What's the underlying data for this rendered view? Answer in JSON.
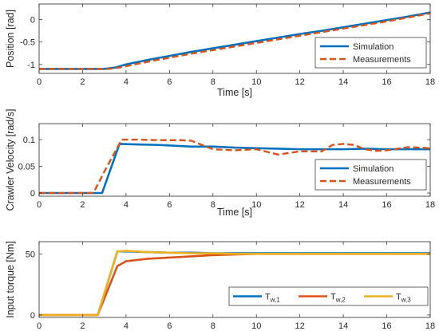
{
  "chart_data": [
    {
      "type": "line",
      "xlabel": "Time [s]",
      "ylabel": "Position [rad]",
      "xlim": [
        0,
        18
      ],
      "ylim": [
        -1.2,
        0.35
      ],
      "xticks": [
        0,
        2,
        4,
        6,
        8,
        10,
        12,
        14,
        16,
        18
      ],
      "yticks": [
        -1,
        -0.5,
        0
      ],
      "ytick_labels": [
        "-1",
        "-0.5",
        "0"
      ],
      "grid": false,
      "legend_position": "right",
      "series": [
        {
          "name": "Simulation",
          "color": "#0072BD",
          "style": "solid",
          "x": [
            0,
            3,
            3.5,
            4,
            5,
            6,
            7,
            8,
            9,
            10,
            11,
            12,
            13,
            14,
            15,
            16,
            17,
            18
          ],
          "y": [
            -1.1,
            -1.1,
            -1.07,
            -1.0,
            -0.9,
            -0.81,
            -0.72,
            -0.64,
            -0.56,
            -0.48,
            -0.4,
            -0.32,
            -0.25,
            -0.17,
            -0.09,
            -0.01,
            0.07,
            0.16
          ]
        },
        {
          "name": "Measurements",
          "color": "#D95319",
          "style": "dashed",
          "x": [
            0,
            3.2,
            3.7,
            4.2,
            5,
            6,
            7,
            8,
            9,
            10,
            11,
            12,
            13,
            14,
            15,
            16,
            17,
            18
          ],
          "y": [
            -1.1,
            -1.1,
            -1.07,
            -1.02,
            -0.94,
            -0.85,
            -0.76,
            -0.68,
            -0.6,
            -0.52,
            -0.44,
            -0.36,
            -0.28,
            -0.2,
            -0.12,
            -0.04,
            0.05,
            0.14
          ]
        }
      ]
    },
    {
      "type": "line",
      "xlabel": "Time [s]",
      "ylabel": "Crawler Velocity [rad/s]",
      "xlim": [
        0,
        18
      ],
      "ylim": [
        -0.006,
        0.13
      ],
      "xticks": [
        0,
        2,
        4,
        6,
        8,
        10,
        12,
        14,
        16,
        18
      ],
      "yticks": [
        0,
        0.05,
        0.1
      ],
      "ytick_labels": [
        "0",
        "0.05",
        "0.1"
      ],
      "grid": false,
      "legend_position": "bottom-right",
      "series": [
        {
          "name": "Simulation",
          "color": "#0072BD",
          "style": "solid",
          "x": [
            0,
            2.9,
            3.7,
            4.5,
            5.5,
            6.5,
            7,
            8,
            9,
            10,
            11,
            12,
            13,
            14,
            15,
            16,
            17,
            18
          ],
          "y": [
            0,
            0,
            0.092,
            0.091,
            0.09,
            0.088,
            0.087,
            0.087,
            0.085,
            0.084,
            0.083,
            0.082,
            0.082,
            0.082,
            0.083,
            0.082,
            0.082,
            0.082
          ]
        },
        {
          "name": "Measurements",
          "color": "#D95319",
          "style": "dashed",
          "x": [
            0,
            2.5,
            3.0,
            3.8,
            4.5,
            5.5,
            6.5,
            7.0,
            7.5,
            8.0,
            9.0,
            10.0,
            11.0,
            12.0,
            13.0,
            13.5,
            14.0,
            14.5,
            15.0,
            15.5,
            16.0,
            17.0,
            18.0
          ],
          "y": [
            0,
            0,
            0.04,
            0.1,
            0.1,
            0.099,
            0.099,
            0.098,
            0.09,
            0.082,
            0.08,
            0.082,
            0.072,
            0.078,
            0.078,
            0.09,
            0.092,
            0.09,
            0.082,
            0.079,
            0.08,
            0.086,
            0.084
          ]
        }
      ]
    },
    {
      "type": "line",
      "xlabel": "",
      "ylabel": "Input torque [Nm]",
      "xlim": [
        0,
        18
      ],
      "ylim": [
        -2,
        60
      ],
      "xticks": [
        0,
        2,
        4,
        6,
        8,
        10,
        12,
        14,
        16,
        18
      ],
      "yticks": [
        0,
        50
      ],
      "ytick_labels": [
        "0",
        "50"
      ],
      "grid": false,
      "legend_position": "bottom-right",
      "series": [
        {
          "name": "T",
          "sub": "w,1",
          "color": "#0072BD",
          "style": "solid",
          "x": [
            0,
            2.7,
            3.6,
            4.0,
            5.0,
            6.0,
            7.0,
            8.0,
            9.0,
            10.0,
            11.0,
            12.0,
            13.0,
            14.0,
            15.0,
            16.0,
            17.0,
            18.0
          ],
          "y": [
            0,
            0,
            52,
            52,
            51.5,
            51,
            51,
            50.5,
            50.5,
            50.5,
            50.5,
            50.5,
            50.5,
            50.5,
            50.5,
            50.5,
            50.5,
            50.5
          ]
        },
        {
          "name": "T",
          "sub": "w,2",
          "color": "#D95319",
          "style": "solid",
          "x": [
            0,
            2.7,
            3.6,
            4.0,
            5.0,
            6.0,
            7.0,
            8.0,
            9.0,
            10.0,
            11.0,
            12.0,
            13.0,
            14.0,
            15.0,
            16.0,
            17.0,
            18.0
          ],
          "y": [
            0,
            0,
            40,
            44,
            46,
            47,
            48,
            49,
            49.5,
            50,
            50,
            50,
            50,
            50,
            50,
            50,
            50,
            50
          ]
        },
        {
          "name": "T",
          "sub": "w,3",
          "color": "#EDB120",
          "style": "solid",
          "x": [
            0,
            2.7,
            3.6,
            4.0,
            5.0,
            6.0,
            7.0,
            8.0,
            9.0,
            10.0,
            11.0,
            12.0,
            13.0,
            14.0,
            15.0,
            16.0,
            17.0,
            18.0
          ],
          "y": [
            0,
            0,
            52,
            52.5,
            51.5,
            51,
            50.5,
            50.5,
            50,
            50,
            50,
            50,
            50,
            50,
            50,
            50,
            50,
            50
          ]
        }
      ]
    }
  ]
}
